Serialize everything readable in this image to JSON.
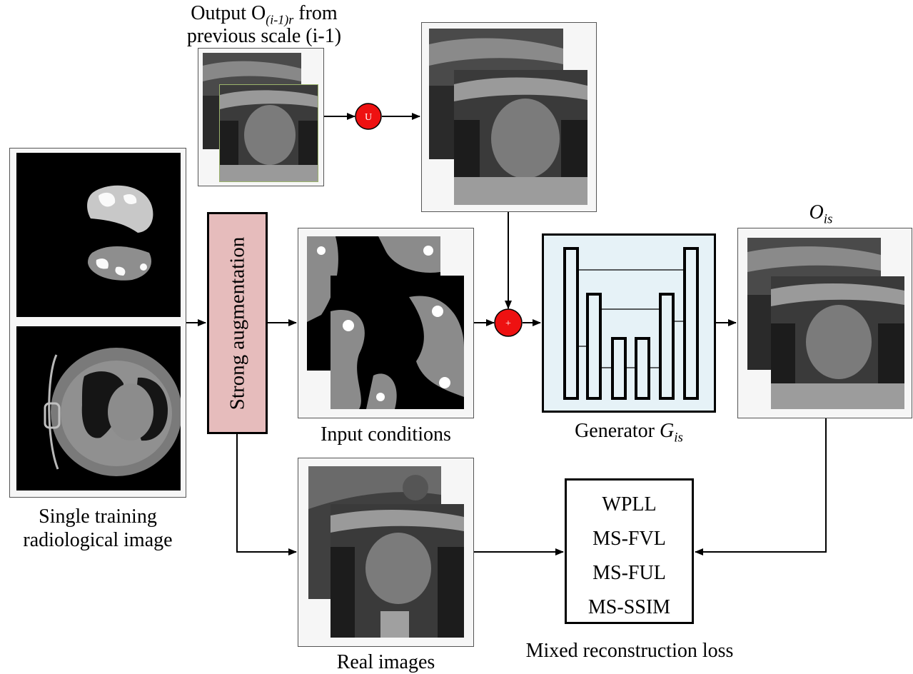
{
  "labels": {
    "prev_output_line1_pre": "Output O",
    "prev_output_line1_sub": "(i-1)r",
    "prev_output_line1_post": " from",
    "prev_output_line2": "previous scale (i-1)",
    "output_main": "O",
    "output_sub": "is",
    "single_line1": "Single training",
    "single_line2": "radiological image",
    "input_conditions": "Input conditions",
    "generator_pre": "Generator ",
    "generator_main": "G",
    "generator_sub": "is",
    "real_images": "Real images",
    "mixed_loss": "Mixed reconstruction loss",
    "strong_aug": "Strong augmentation"
  },
  "nodes": {
    "upsample": "U",
    "add": "+"
  },
  "losses": [
    "WPLL",
    "MS-FVL",
    "MS-FUL",
    "MS-SSIM"
  ],
  "colors": {
    "aug_fill": "#e6bcbc",
    "gen_fill": "#e6f2f7",
    "node_red": "#ee1111"
  }
}
